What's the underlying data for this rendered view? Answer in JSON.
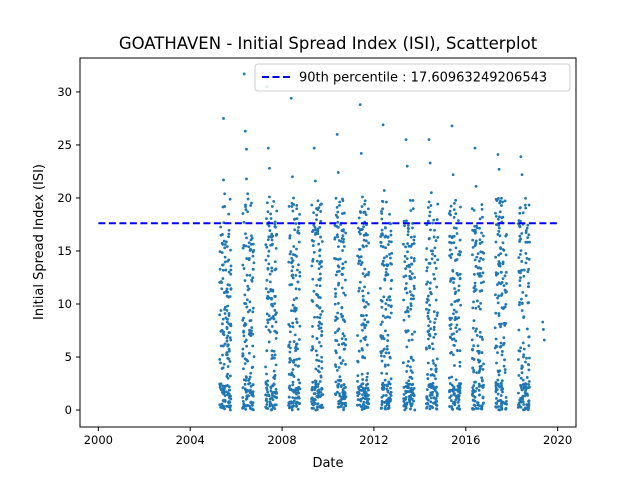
{
  "chart_data": {
    "type": "scatter",
    "title": "GOATHAVEN - Initial Spread Index (ISI), Scatterplot",
    "xlabel": "Date",
    "ylabel": "Initial Spread Index (ISI)",
    "x_is_year": true,
    "xlim": [
      1999.2,
      2020.8
    ],
    "ylim": [
      -1.6,
      33.2
    ],
    "xticks": [
      2000,
      2004,
      2008,
      2012,
      2016,
      2020
    ],
    "yticks": [
      0,
      5,
      10,
      15,
      20,
      25,
      30
    ],
    "grid": false,
    "legend_position": "upper right",
    "point_color": "#1f77b4",
    "reference_line": {
      "label": "90th percentile : 17.60963249206543",
      "y": 17.60963249206543,
      "x_range": [
        2000.0,
        2020.0
      ],
      "color": "#0000ff",
      "style": "dashed"
    },
    "season_bounds": [
      [
        2005.28,
        2005.78
      ],
      [
        2006.28,
        2006.78
      ],
      [
        2007.28,
        2007.78
      ],
      [
        2008.28,
        2008.78
      ],
      [
        2009.28,
        2009.78
      ],
      [
        2010.28,
        2010.78
      ],
      [
        2011.28,
        2011.78
      ],
      [
        2012.28,
        2012.78
      ],
      [
        2013.28,
        2013.78
      ],
      [
        2014.28,
        2014.78
      ],
      [
        2015.28,
        2015.78
      ],
      [
        2016.28,
        2016.78
      ],
      [
        2017.28,
        2017.78
      ],
      [
        2018.28,
        2018.78
      ]
    ],
    "series": [
      {
        "x": [
          2005.45,
          2005.45,
          2005.5,
          2005.5,
          2005.5,
          2005.55,
          2005.55,
          2005.6,
          2005.6,
          2005.6,
          2005.6,
          2005.65,
          2005.65,
          2005.7,
          2005.7,
          2005.7,
          2005.75,
          2005.75,
          2006.35,
          2006.4,
          2006.45,
          2006.45,
          2006.5,
          2006.5,
          2006.55,
          2006.6,
          2006.6,
          2006.65,
          2006.7,
          2006.75,
          2007.35,
          2007.4,
          2007.45,
          2007.45,
          2007.5,
          2007.55,
          2007.55,
          2007.6,
          2007.65,
          2007.7,
          2007.75,
          2008.4,
          2008.45,
          2008.5,
          2008.55,
          2008.6,
          2008.65,
          2008.7,
          2009.4,
          2009.45,
          2009.5,
          2009.55,
          2009.6,
          2009.65,
          2009.7,
          2010.4,
          2010.45,
          2010.5,
          2010.55,
          2010.6,
          2010.65,
          2010.7,
          2011.4,
          2011.45,
          2011.5,
          2011.55,
          2011.6,
          2011.65,
          2011.7,
          2012.4,
          2012.45,
          2012.5,
          2012.55,
          2012.6,
          2012.65,
          2013.4,
          2013.45,
          2013.5,
          2013.55,
          2013.6,
          2013.65,
          2014.4,
          2014.45,
          2014.5,
          2014.55,
          2014.6,
          2015.4,
          2015.45,
          2015.5,
          2015.55,
          2015.6,
          2016.4,
          2016.45,
          2016.5,
          2016.55,
          2016.6,
          2017.4,
          2017.45,
          2017.5,
          2017.55,
          2017.6,
          2018.4,
          2018.45,
          2018.5,
          2018.55,
          2018.6,
          2019.35,
          2019.38,
          2019.42
        ],
        "y": [
          27.5,
          21.7,
          20.4,
          19.2,
          15.3,
          13.2,
          11.1,
          9.4,
          7.8,
          6.5,
          5.2,
          4.1,
          3.0,
          2.2,
          1.5,
          0.8,
          0.4,
          0.0,
          31.7,
          26.3,
          24.6,
          21.8,
          20.4,
          18.7,
          15.4,
          12.7,
          10.2,
          7.3,
          4.0,
          1.3,
          30.5,
          24.7,
          22.8,
          20.1,
          18.5,
          16.6,
          13.4,
          11.2,
          8.6,
          5.2,
          1.7,
          29.4,
          22.0,
          20.0,
          17.0,
          12.7,
          8.3,
          2.0,
          24.7,
          21.6,
          19.0,
          16.8,
          12.3,
          8.2,
          3.1,
          26.0,
          22.4,
          19.3,
          17.5,
          12.8,
          7.2,
          2.4,
          28.8,
          24.2,
          20.1,
          17.3,
          13.3,
          8.0,
          3.1,
          26.9,
          20.7,
          17.2,
          13.7,
          8.8,
          2.5,
          25.5,
          23.0,
          17.4,
          13.5,
          9.5,
          1.7,
          25.5,
          23.3,
          20.5,
          14.7,
          4.4,
          26.8,
          22.2,
          18.9,
          14.1,
          8.6,
          24.7,
          21.1,
          17.2,
          12.8,
          3.7,
          24.1,
          22.7,
          18.7,
          13.0,
          1.7,
          23.9,
          22.2,
          18.6,
          13.2,
          2.5,
          8.3,
          7.6,
          6.6
        ]
      }
    ]
  }
}
